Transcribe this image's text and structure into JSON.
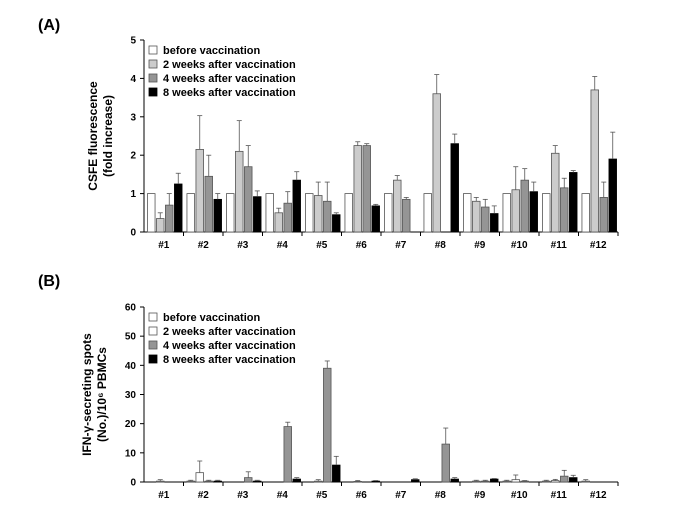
{
  "chart_data": [
    {
      "panel_label": "(A)",
      "type": "bar",
      "ylabel_lines": [
        "CSFE fluorescence",
        "(fold increase)"
      ],
      "ylim": [
        0,
        5
      ],
      "yticks": [
        "0",
        "1",
        "2",
        "3",
        "4",
        "5"
      ],
      "categories": [
        "#1",
        "#2",
        "#3",
        "#4",
        "#5",
        "#6",
        "#7",
        "#8",
        "#9",
        "#10",
        "#11",
        "#12"
      ],
      "legend_position": "top-left",
      "series": [
        {
          "name": "before vaccination",
          "color": "#ffffff",
          "values": [
            1,
            1,
            1,
            1,
            1,
            1,
            1,
            1,
            1,
            1,
            1,
            1
          ],
          "errors": [
            0,
            0,
            0,
            0,
            0,
            0,
            0,
            0,
            0,
            0,
            0,
            0
          ]
        },
        {
          "name": "2 weeks after vaccination",
          "color": "#cccccc",
          "values": [
            0.35,
            2.15,
            2.1,
            0.5,
            0.95,
            2.25,
            1.35,
            3.6,
            0.8,
            1.1,
            2.05,
            3.7
          ],
          "errors": [
            0.15,
            0.88,
            0.8,
            0.12,
            0.35,
            0.1,
            0.12,
            0.5,
            0.1,
            0.6,
            0.2,
            0.35
          ]
        },
        {
          "name": "4 weeks after vaccination",
          "color": "#959595",
          "values": [
            0.7,
            1.45,
            1.7,
            0.75,
            0.8,
            2.25,
            0.85,
            0,
            0.65,
            1.35,
            1.15,
            0.9
          ],
          "errors": [
            0.3,
            0.55,
            0.55,
            0.3,
            0.5,
            0.05,
            0.05,
            0,
            0.2,
            0.3,
            0.25,
            0.4
          ]
        },
        {
          "name": "8 weeks after vaccination",
          "color": "#000000",
          "values": [
            1.25,
            0.85,
            0.92,
            1.35,
            0.45,
            0.68,
            0,
            2.3,
            0.48,
            1.05,
            1.55,
            1.9
          ],
          "errors": [
            0.28,
            0.15,
            0.15,
            0.22,
            0.05,
            0.04,
            0,
            0.25,
            0.2,
            0.25,
            0.05,
            0.7
          ]
        }
      ]
    },
    {
      "panel_label": "(B)",
      "type": "bar",
      "ylabel_lines": [
        "IFN-γ-secreting spots",
        "(No.)/10⁶ PBMCs"
      ],
      "ylim": [
        0,
        60
      ],
      "yticks": [
        "0",
        "10",
        "20",
        "30",
        "40",
        "50",
        "60"
      ],
      "categories": [
        "#1",
        "#2",
        "#3",
        "#4",
        "#5",
        "#6",
        "#7",
        "#8",
        "#9",
        "#10",
        "#11",
        "#12"
      ],
      "legend_position": "top-left",
      "series": [
        {
          "name": "before vaccination",
          "color": "#ffffff",
          "values": [
            0,
            0.3,
            0,
            0,
            0,
            0,
            0,
            0,
            0,
            0.3,
            0.3,
            0.3
          ],
          "errors": [
            0,
            0.3,
            0,
            0,
            0,
            0,
            0,
            0,
            0,
            0.3,
            0.3,
            0.5
          ]
        },
        {
          "name": "2 weeks after vaccination",
          "color": "#ffffff",
          "values": [
            0.3,
            3.2,
            0,
            0,
            0.3,
            0.2,
            0,
            0,
            0.3,
            0.8,
            0.5,
            0
          ],
          "errors": [
            0.5,
            4.0,
            0,
            0,
            0.5,
            0.3,
            0,
            0,
            0.3,
            1.6,
            0.4,
            0
          ]
        },
        {
          "name": "4 weeks after vaccination",
          "color": "#959595",
          "values": [
            0,
            0.3,
            1.5,
            19,
            39,
            0,
            0,
            13,
            0.3,
            0.3,
            2,
            0
          ],
          "errors": [
            0,
            0.3,
            2.0,
            1.5,
            2.5,
            0,
            0,
            5.5,
            0.3,
            0.2,
            2.0,
            0
          ]
        },
        {
          "name": "8 weeks after vaccination",
          "color": "#000000",
          "values": [
            0,
            0.3,
            0.3,
            1.0,
            5.8,
            0.3,
            0.8,
            1.0,
            1.0,
            0,
            1.5,
            0
          ],
          "errors": [
            0,
            0.3,
            0.3,
            0.5,
            3.0,
            0.2,
            0.3,
            0.5,
            0.2,
            0,
            0.8,
            0
          ]
        }
      ]
    }
  ]
}
